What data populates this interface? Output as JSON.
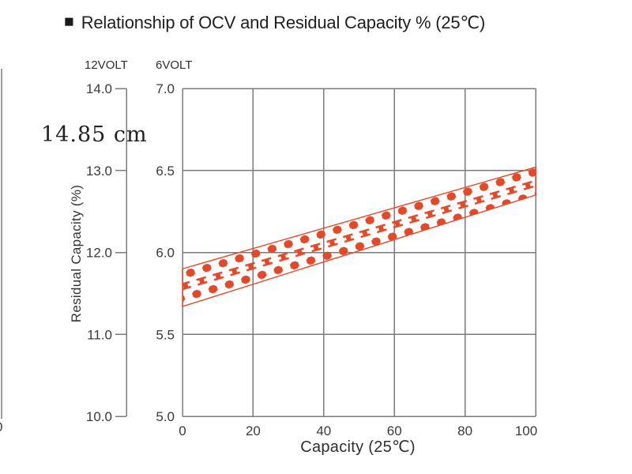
{
  "header": {
    "title": "Relationship of OCV and Residual Capacity % (25℃)"
  },
  "icons": {
    "title_bullet": "■"
  },
  "watermark": "14.85 cm",
  "colors": {
    "band": "#E2492A",
    "grid": "#7B7B7B",
    "tick_text": "#3A3A3A",
    "title_text": "#1F1F1F"
  },
  "chart_data": {
    "type": "area",
    "title": "Relationship of OCV and Residual Capacity % (25℃)",
    "xlabel": "Capacity (25℃)",
    "ylabel": "Residual Capacity (%)",
    "grid": true,
    "legend": false,
    "x_axis": {
      "ticks": [
        0,
        20,
        40,
        60,
        80,
        100
      ],
      "range": [
        0,
        100
      ]
    },
    "y_axis_12v": {
      "label": "12VOLT",
      "ticks": [
        14.0,
        13.0,
        12.0,
        11.0,
        10.0
      ],
      "range": [
        10.0,
        14.0
      ]
    },
    "y_axis_6v": {
      "label": "6VOLT",
      "ticks": [
        7.0,
        6.5,
        6.0,
        5.5,
        5.0
      ],
      "range": [
        5.0,
        7.0
      ]
    },
    "band": {
      "description": "OCV range band (hatched with hexagon and spool pattern)",
      "x": [
        0,
        100
      ],
      "upper_6v": [
        5.9,
        6.52
      ],
      "lower_6v": [
        5.67,
        6.35
      ],
      "upper_12v": [
        11.8,
        13.04
      ],
      "lower_12v": [
        11.34,
        12.7
      ]
    },
    "artifact": {
      "clipped_axis_label": "0"
    }
  }
}
